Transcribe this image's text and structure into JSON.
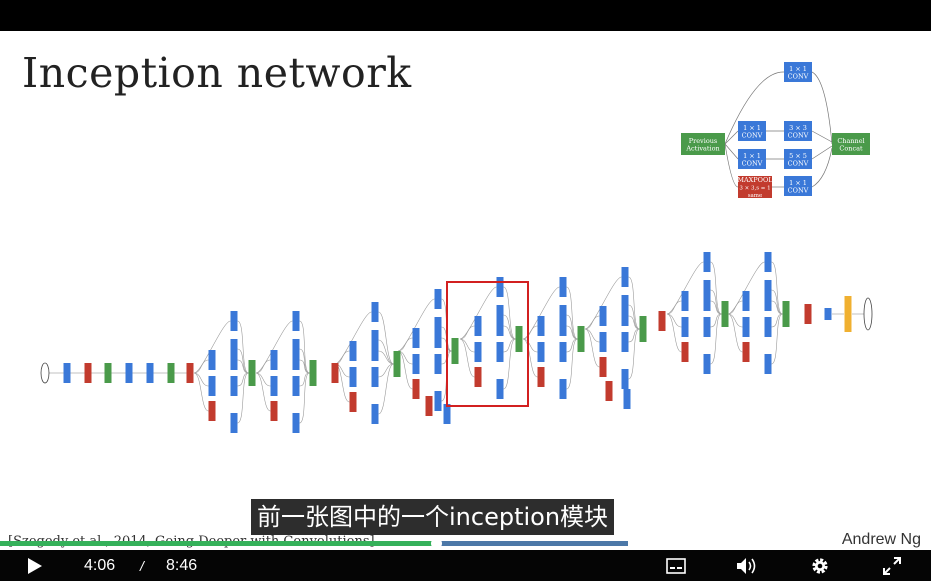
{
  "slide": {
    "title": "Inception network",
    "citation": "[Szegedy et al., 2014, Going Deeper with Convolutions]",
    "author": "Andrew Ng",
    "module": {
      "input": [
        "Previous",
        "Activation"
      ],
      "branches": [
        {
          "stack": [
            [
              "1 × 1",
              "CONV"
            ]
          ]
        },
        {
          "stack": [
            [
              "1 × 1",
              "CONV"
            ],
            [
              "3 × 3",
              "CONV"
            ]
          ]
        },
        {
          "stack": [
            [
              "1 × 1",
              "CONV"
            ],
            [
              "5 × 5",
              "CONV"
            ]
          ]
        },
        {
          "stack": [
            [
              "MAXPOOL",
              "3 × 3,s = 1",
              "same"
            ],
            [
              "1 × 1",
              "CONV"
            ]
          ]
        }
      ],
      "output": [
        "Channel",
        "Concat"
      ]
    },
    "colors": {
      "conv": "#3a78d8",
      "pool": "#c23b2e",
      "concat": "#4a9a4a",
      "softmax": "#f0b030",
      "highlight": "#d22020"
    }
  },
  "subtitle": "前一张图中的一个inception模块",
  "player": {
    "current_time": "4:06",
    "time_separator": "/",
    "duration": "8:46",
    "progress_played": 0.468,
    "progress_buffered": 0.675
  }
}
